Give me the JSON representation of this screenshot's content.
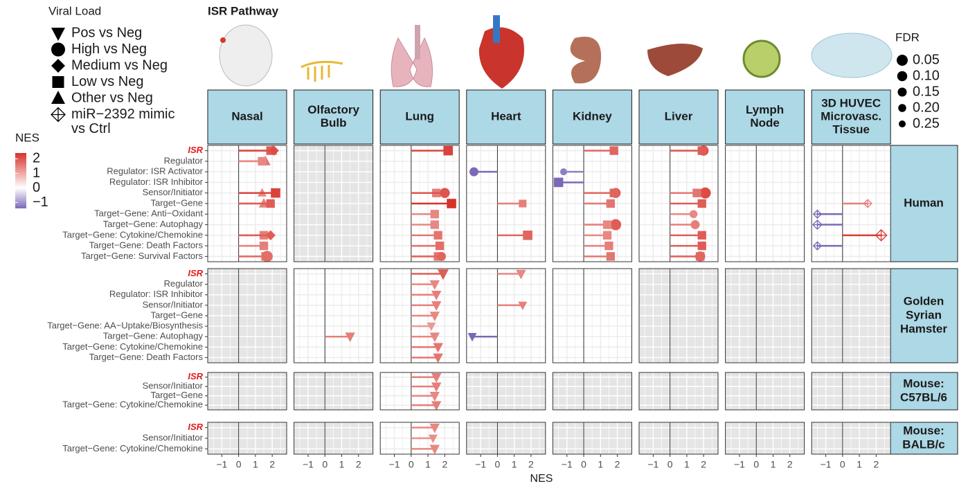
{
  "chart_data": {
    "type": "lollipop-facets",
    "title": "ISR Pathway",
    "x_label": "NES",
    "xlim": [
      -1.84,
      2.86
    ],
    "xticks": [
      {
        "value": -1,
        "label": "−1"
      },
      0,
      1,
      2
    ],
    "grid": true,
    "columns": [
      [
        "Nasal"
      ],
      [
        "Olfactory",
        "Bulb"
      ],
      [
        "Lung"
      ],
      [
        "Heart"
      ],
      [
        "Kidney"
      ],
      [
        "Liver"
      ],
      [
        "Lymph",
        "Node"
      ],
      [
        "3D HUVEC",
        "Microvasc.",
        "Tissue"
      ]
    ],
    "shape_legend": {
      "title": "Viral Load",
      "entries": [
        {
          "shape": "triangle-down",
          "label": [
            "Pos vs Neg"
          ]
        },
        {
          "shape": "circle",
          "label": [
            "High vs Neg"
          ]
        },
        {
          "shape": "diamond",
          "label": [
            "Medium vs Neg"
          ]
        },
        {
          "shape": "square",
          "label": [
            "Low vs Neg"
          ]
        },
        {
          "shape": "triangle",
          "label": [
            "Other vs Neg"
          ]
        },
        {
          "shape": "diamond-cross",
          "label": [
            "miR−2392 mimic",
            "vs Ctrl"
          ]
        }
      ]
    },
    "size_legend": {
      "title": "FDR",
      "values": [
        {
          "value": 0.05,
          "label": "0.05"
        },
        {
          "value": 0.1,
          "label": "0.10"
        },
        {
          "value": 0.15,
          "label": "0.15"
        },
        {
          "value": 0.2,
          "label": "0.20"
        },
        {
          "value": 0.25,
          "label": "0.25"
        }
      ]
    },
    "color_legend": {
      "title": "NES",
      "lim": [
        -1.4,
        2.4
      ],
      "colors": [
        "#7b68b8",
        "#ffffff",
        "#d7322a"
      ],
      "ticks": [
        2,
        1,
        0,
        {
          "value": -1,
          "label": "−1"
        }
      ]
    },
    "rows": [
      {
        "name": [
          "Human"
        ],
        "categories": [
          "ISR",
          "Regulator",
          "Regulator: ISR Activator",
          "Regulator: ISR Inhibitor",
          "Sensor/Initiator",
          "Target−Gene",
          "Target−Gene: Anti−Oxidant",
          "Target−Gene: Autophagy",
          "Target−Gene: Cytokine/Chemokine",
          "Target−Gene: Death Factors",
          "Target−Gene: Survival Factors"
        ],
        "panels": [
          [
            {
              "shape": "triangle",
              "values": [
                2.0,
                1.6,
                null,
                null,
                1.4,
                1.5,
                null,
                null,
                null,
                null,
                null
              ],
              "fdr": [
                0.1,
                0.1,
                null,
                null,
                0.15,
                0.1,
                null,
                null,
                null,
                null,
                null
              ]
            },
            {
              "shape": "square",
              "values": [
                1.9,
                1.4,
                null,
                null,
                2.2,
                1.9,
                null,
                null,
                1.5,
                1.5,
                1.6
              ],
              "fdr": [
                0.1,
                0.1,
                null,
                null,
                0.05,
                0.1,
                null,
                null,
                0.1,
                0.1,
                0.1
              ]
            },
            {
              "shape": "diamond",
              "values": [
                2.1,
                null,
                null,
                null,
                null,
                null,
                null,
                null,
                1.9,
                null,
                null
              ],
              "fdr": [
                0.1,
                null,
                null,
                null,
                null,
                null,
                null,
                null,
                0.1,
                null,
                null
              ]
            },
            {
              "shape": "circle",
              "values": [
                null,
                null,
                null,
                null,
                null,
                null,
                null,
                null,
                null,
                null,
                1.7
              ],
              "fdr": [
                null,
                null,
                null,
                null,
                null,
                null,
                null,
                null,
                null,
                null,
                0.05
              ]
            }
          ],
          null,
          [
            {
              "shape": "square",
              "values": [
                2.2,
                null,
                null,
                null,
                1.5,
                2.4,
                1.4,
                1.4,
                1.6,
                1.7,
                1.6
              ],
              "fdr": [
                0.05,
                null,
                null,
                null,
                0.1,
                0.05,
                0.1,
                0.1,
                0.1,
                0.1,
                0.1
              ]
            },
            {
              "shape": "circle",
              "values": [
                null,
                null,
                null,
                null,
                2.0,
                null,
                null,
                null,
                null,
                null,
                1.8
              ],
              "fdr": [
                null,
                null,
                null,
                null,
                0.1,
                null,
                null,
                null,
                null,
                null,
                0.15
              ]
            }
          ],
          [
            {
              "shape": "circle",
              "values": [
                null,
                null,
                -1.4,
                null,
                null,
                null,
                null,
                null,
                null,
                null,
                null
              ],
              "fdr": [
                null,
                null,
                0.15,
                null,
                null,
                null,
                null,
                null,
                null,
                null,
                null
              ]
            },
            {
              "shape": "square",
              "values": [
                null,
                null,
                null,
                null,
                null,
                1.5,
                null,
                null,
                1.8,
                null,
                null
              ],
              "fdr": [
                null,
                null,
                null,
                null,
                null,
                0.15,
                null,
                null,
                0.05,
                null,
                null
              ]
            }
          ],
          [
            {
              "shape": "circle",
              "values": [
                null,
                null,
                -1.2,
                null,
                1.9,
                null,
                null,
                1.9,
                null,
                null,
                null
              ],
              "fdr": [
                null,
                null,
                0.25,
                null,
                0.1,
                null,
                null,
                0.05,
                null,
                null,
                null
              ]
            },
            {
              "shape": "square",
              "values": [
                1.8,
                null,
                null,
                -1.5,
                1.8,
                1.6,
                null,
                1.4,
                1.4,
                1.5,
                1.6
              ],
              "fdr": [
                0.1,
                null,
                null,
                0.05,
                0.1,
                0.1,
                null,
                0.1,
                0.1,
                0.1,
                0.1
              ]
            }
          ],
          [
            {
              "shape": "circle",
              "values": [
                2.0,
                null,
                null,
                null,
                2.1,
                null,
                1.4,
                1.5,
                null,
                null,
                1.8
              ],
              "fdr": [
                0.1,
                null,
                null,
                null,
                0.05,
                null,
                0.2,
                0.15,
                null,
                null,
                0.1
              ]
            },
            {
              "shape": "square",
              "values": [
                1.9,
                null,
                null,
                null,
                1.6,
                1.9,
                null,
                null,
                1.9,
                1.9,
                1.8
              ],
              "fdr": [
                0.1,
                null,
                null,
                null,
                0.1,
                0.1,
                null,
                null,
                0.1,
                0.1,
                0.1
              ]
            }
          ],
          [],
          [
            {
              "shape": "diamond-cross",
              "values": [
                null,
                null,
                null,
                null,
                null,
                1.5,
                -1.5,
                -1.5,
                2.3,
                -1.5,
                null
              ],
              "fdr": [
                null,
                null,
                null,
                null,
                null,
                0.2,
                0.2,
                0.15,
                0.05,
                0.2,
                null
              ]
            }
          ]
        ]
      },
      {
        "name": [
          "Golden",
          "Syrian",
          "Hamster"
        ],
        "categories": [
          "ISR",
          "Regulator",
          "Regulator: ISR Inhibitor",
          "Sensor/Initiator",
          "Target−Gene",
          "Target−Gene: AA−Uptake/Biosynthesis",
          "Target−Gene: Autophagy",
          "Target−Gene: Cytokine/Chemokine",
          "Target−Gene: Death Factors"
        ],
        "panels": [
          null,
          [
            {
              "shape": "triangle-down",
              "values": [
                null,
                null,
                null,
                null,
                null,
                null,
                1.5,
                null,
                null
              ],
              "fdr": [
                null,
                null,
                null,
                null,
                null,
                null,
                0.1,
                null,
                null
              ]
            }
          ],
          [
            {
              "shape": "triangle-down",
              "values": [
                1.9,
                1.4,
                1.5,
                1.5,
                1.4,
                1.2,
                1.4,
                1.6,
                1.6
              ],
              "fdr": [
                0.05,
                0.1,
                0.1,
                0.1,
                0.1,
                0.15,
                0.1,
                0.1,
                0.1
              ]
            }
          ],
          [
            {
              "shape": "triangle-down",
              "values": [
                1.4,
                null,
                null,
                1.5,
                null,
                null,
                -1.5,
                null,
                null
              ],
              "fdr": [
                0.1,
                null,
                null,
                0.15,
                null,
                null,
                0.15,
                null,
                null
              ]
            }
          ],
          [],
          null,
          null,
          null
        ]
      },
      {
        "name": [
          "Mouse:",
          "C57BL/6"
        ],
        "categories": [
          "ISR",
          "Sensor/Initiator",
          "Target−Gene",
          "Target−Gene: Cytokine/Chemokine"
        ],
        "panels": [
          null,
          null,
          [
            {
              "shape": "triangle-down",
              "values": [
                1.5,
                1.5,
                1.4,
                1.5
              ],
              "fdr": [
                0.1,
                0.1,
                0.1,
                0.1
              ]
            }
          ],
          null,
          null,
          null,
          null,
          null
        ]
      },
      {
        "name": [
          "Mouse:",
          "BALB/c"
        ],
        "categories": [
          "ISR",
          "Sensor/Initiator",
          "Target−Gene: Cytokine/Chemokine"
        ],
        "panels": [
          null,
          null,
          [
            {
              "shape": "triangle-down",
              "values": [
                1.4,
                1.3,
                1.4
              ],
              "fdr": [
                0.1,
                0.15,
                0.1
              ]
            }
          ],
          null,
          null,
          null,
          null,
          null
        ]
      }
    ]
  }
}
